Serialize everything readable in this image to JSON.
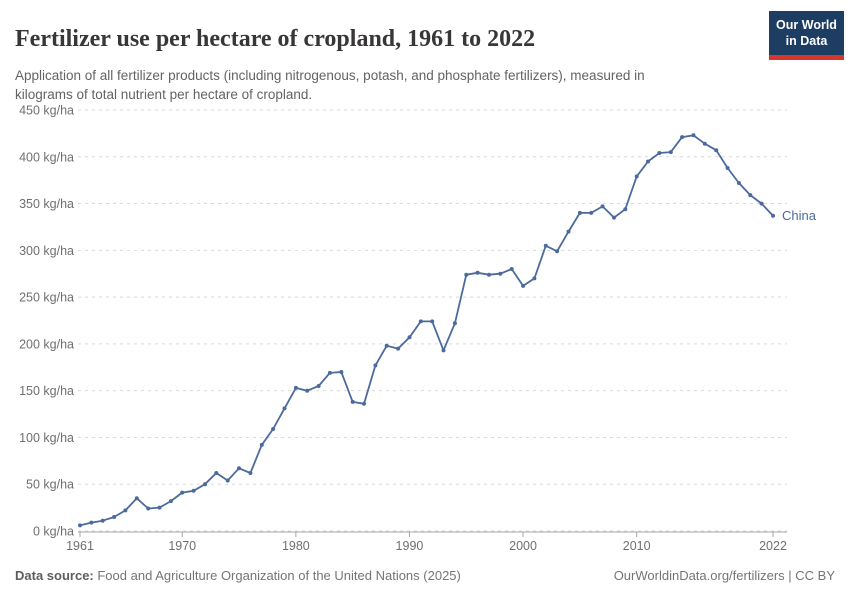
{
  "header": {
    "title": "Fertilizer use per hectare of cropland, 1961 to 2022",
    "subtitle": "Application of all fertilizer products (including nitrogenous, potash, and phosphate fertilizers), measured in kilograms of total nutrient per hectare of cropland.",
    "logo": {
      "line1": "Our World",
      "line2": "in Data",
      "bg_color": "#1d3d63",
      "accent_color": "#d6362b"
    }
  },
  "footer": {
    "source_label": "Data source:",
    "source_text": " Food and Agriculture Organization of the United Nations (2025)",
    "right_text": "OurWorldinData.org/fertilizers | CC BY"
  },
  "chart_data": {
    "type": "line",
    "title": "Fertilizer use per hectare of cropland, 1961 to 2022",
    "entity_label": "China",
    "unit": "kg/ha",
    "line_color": "#4c6a9c",
    "grid_color": "#d9d9d9",
    "axis_color": "#a6a6a6",
    "tick_text_color": "#6f6f6f",
    "grid": "dashed",
    "legend_position": "end-of-line label",
    "ylim": [
      0,
      450
    ],
    "ytick_suffix": " kg/ha",
    "yticks": [
      0,
      50,
      100,
      150,
      200,
      250,
      300,
      350,
      400,
      450
    ],
    "xticks": [
      1961,
      1970,
      1980,
      1990,
      2000,
      2010,
      2022
    ],
    "years": [
      1961,
      1962,
      1963,
      1964,
      1965,
      1966,
      1967,
      1968,
      1969,
      1970,
      1971,
      1972,
      1973,
      1974,
      1975,
      1976,
      1977,
      1978,
      1979,
      1980,
      1981,
      1982,
      1983,
      1984,
      1985,
      1986,
      1987,
      1988,
      1989,
      1990,
      1991,
      1992,
      1993,
      1994,
      1995,
      1996,
      1997,
      1998,
      1999,
      2000,
      2001,
      2002,
      2003,
      2004,
      2005,
      2006,
      2007,
      2008,
      2009,
      2010,
      2011,
      2012,
      2013,
      2014,
      2015,
      2016,
      2017,
      2018,
      2019,
      2020,
      2021,
      2022
    ],
    "values": [
      6,
      9,
      11,
      15,
      22,
      35,
      24,
      25,
      32,
      41,
      43,
      50,
      62,
      54,
      67,
      62,
      92,
      109,
      131,
      153,
      150,
      155,
      169,
      170,
      138,
      136,
      177,
      198,
      195,
      207,
      224,
      224,
      193,
      222,
      274,
      276,
      274,
      275,
      280,
      262,
      270,
      305,
      299,
      320,
      340,
      340,
      347,
      335,
      344,
      379,
      395,
      404,
      405,
      421,
      423,
      414,
      407,
      388,
      372,
      359,
      350,
      337
    ]
  }
}
